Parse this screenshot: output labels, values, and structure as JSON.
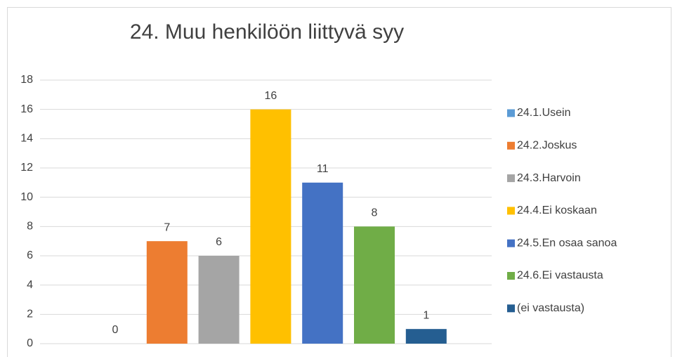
{
  "chart_data": {
    "type": "bar",
    "title": "24. Muu henkilöön liittyvä syy",
    "categories": [
      null
    ],
    "series": [
      {
        "name": "24.1.Usein",
        "color": "#5b9bd5",
        "values": [
          0
        ]
      },
      {
        "name": "24.2.Joskus",
        "color": "#ed7d31",
        "values": [
          7
        ]
      },
      {
        "name": "24.3.Harvoin",
        "color": "#a5a5a5",
        "values": [
          6
        ]
      },
      {
        "name": "24.4.Ei koskaan",
        "color": "#ffc000",
        "values": [
          16
        ]
      },
      {
        "name": "24.5.En osaa sanoa",
        "color": "#4472c4",
        "values": [
          11
        ]
      },
      {
        "name": "24.6.Ei vastausta",
        "color": "#70ad47",
        "values": [
          8
        ]
      },
      {
        "name": "(ei vastausta)",
        "color": "#255e91",
        "values": [
          1
        ]
      }
    ],
    "ylim": [
      0,
      18
    ],
    "yticks": [
      0,
      2,
      4,
      6,
      8,
      10,
      12,
      14,
      16,
      18
    ],
    "grid": true,
    "legend": "right"
  }
}
